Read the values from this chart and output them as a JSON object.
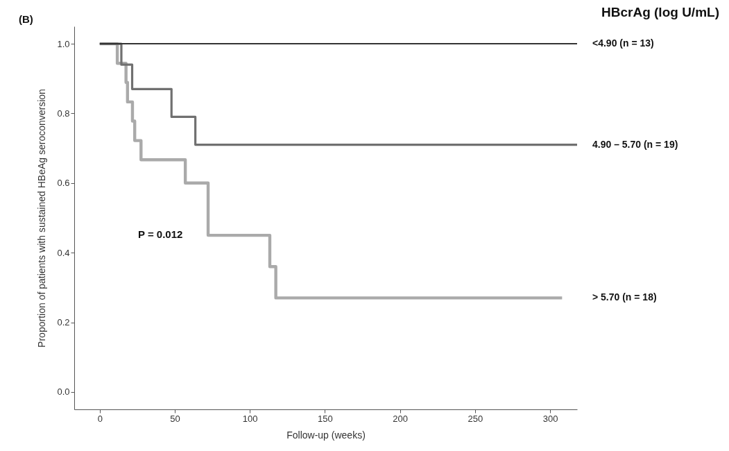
{
  "chart_data": {
    "type": "step",
    "xlabel": "Follow-up (weeks)",
    "ylabel": "Proportion of patients with sustained HBeAg seroconversion",
    "legend_title": "HBcrAg (log U/mL)",
    "annotations": [
      "(B)",
      "P = 0.012"
    ],
    "xlim": [
      -17,
      318
    ],
    "xticks": [
      0,
      50,
      100,
      150,
      200,
      250,
      300
    ],
    "ylim": [
      -0.05,
      1.05
    ],
    "yticks": [
      {
        "value": 0,
        "label": "0.0"
      },
      0.2,
      0.4,
      0.6,
      0.8,
      {
        "value": 1,
        "label": "1.0"
      }
    ],
    "grid": false,
    "legend": false,
    "marker": "none",
    "line_style": "solid",
    "series": [
      {
        "name": "<4.90 (n = 13)",
        "color": "#333333",
        "x": [
          0,
          318
        ],
        "values": [
          1,
          1
        ]
      },
      {
        "name": "4.90 – 5.70 (n = 19)",
        "color": "#707070",
        "x": [
          0,
          14.4,
          21.6,
          47.8,
          63.7,
          318
        ],
        "values": [
          1,
          0.94,
          0.87,
          0.79,
          0.71,
          0.71
        ]
      },
      {
        "name": "> 5.70 (n = 18)",
        "color": "#aaaaaa",
        "x": [
          0,
          11.7,
          17.5,
          18.5,
          21.8,
          23.3,
          27.5,
          57,
          72.2,
          113.3,
          117.3,
          308
        ],
        "values": [
          1,
          0.944,
          0.889,
          0.833,
          0.778,
          0.722,
          0.667,
          0.6,
          0.45,
          0.36,
          0.27,
          0.27
        ]
      }
    ]
  }
}
